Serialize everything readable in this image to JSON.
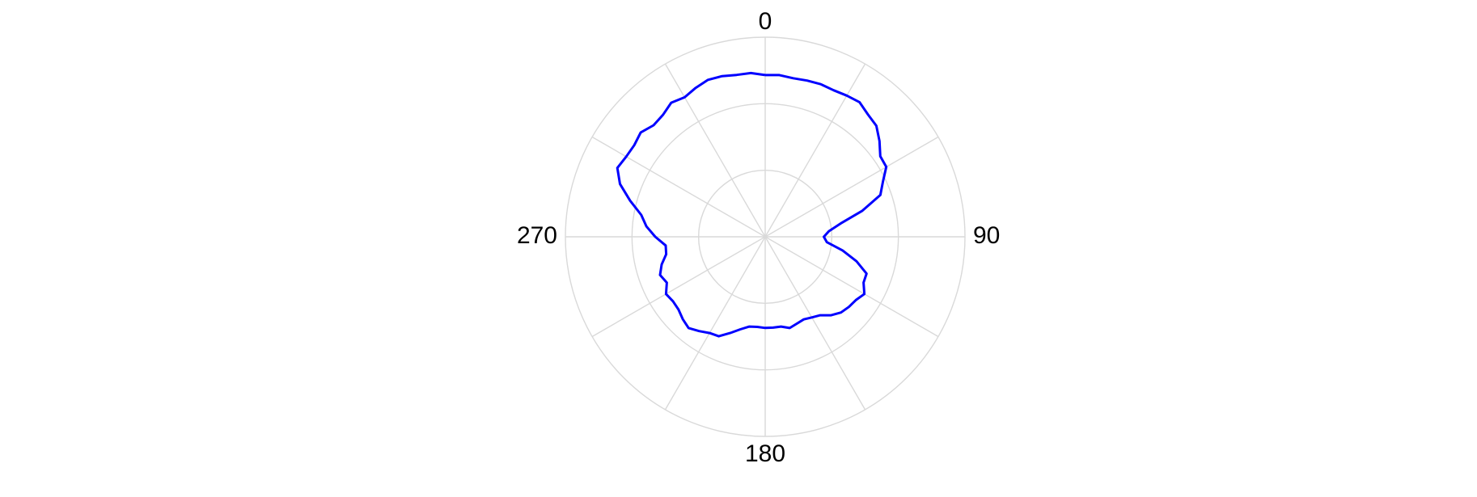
{
  "chart_data": {
    "type": "line",
    "projection": "polar",
    "angle_direction": "clockwise",
    "angle_zero": "top",
    "r_max": 3,
    "r_grid": [
      1,
      2,
      3
    ],
    "angular_grid_step_deg": 30,
    "angle_tick_labels": [
      {
        "angle": 0,
        "label": "0"
      },
      {
        "angle": 90,
        "label": "90"
      },
      {
        "angle": 180,
        "label": "180"
      },
      {
        "angle": 270,
        "label": "270"
      }
    ],
    "radial_tick_labels_shown": false,
    "grid": true,
    "title": "",
    "legend": "none",
    "series": [
      {
        "color": "#0000ff",
        "theta": [
          0,
          5,
          10,
          15,
          20,
          25,
          30,
          35,
          40,
          45,
          50,
          55,
          60,
          65,
          70,
          75,
          80,
          85,
          90,
          95,
          100,
          105,
          110,
          115,
          120,
          125,
          130,
          135,
          140,
          145,
          150,
          155,
          160,
          165,
          170,
          175,
          180,
          185,
          190,
          195,
          200,
          205,
          210,
          215,
          220,
          225,
          230,
          235,
          240,
          245,
          250,
          255,
          260,
          265,
          270,
          275,
          280,
          285,
          290,
          295,
          300,
          305,
          310,
          315,
          320,
          325,
          330,
          335,
          340,
          345,
          350,
          355,
          360
        ],
        "r": [
          2.43,
          2.44,
          2.42,
          2.43,
          2.44,
          2.43,
          2.45,
          2.47,
          2.4,
          2.36,
          2.24,
          2.11,
          2.1,
          1.95,
          1.84,
          1.51,
          1.15,
          0.96,
          0.88,
          0.93,
          1.18,
          1.42,
          1.62,
          1.63,
          1.72,
          1.66,
          1.64,
          1.61,
          1.54,
          1.44,
          1.4,
          1.37,
          1.39,
          1.42,
          1.37,
          1.37,
          1.37,
          1.36,
          1.37,
          1.44,
          1.54,
          1.65,
          1.67,
          1.73,
          1.79,
          1.75,
          1.7,
          1.69,
          1.72,
          1.63,
          1.68,
          1.61,
          1.51,
          1.5,
          1.65,
          1.79,
          1.89,
          2.1,
          2.32,
          2.45,
          2.41,
          2.4,
          2.44,
          2.37,
          2.39,
          2.46,
          2.42,
          2.47,
          2.51,
          2.5,
          2.47,
          2.47,
          2.43
        ]
      }
    ]
  }
}
